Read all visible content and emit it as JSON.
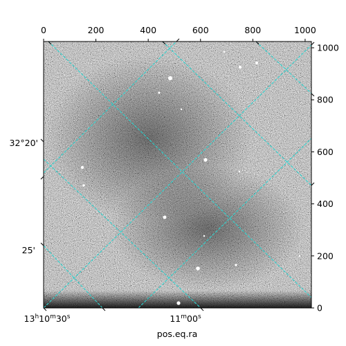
{
  "figure": {
    "axis_label_bottom": "pos.eq.ra",
    "pixel_axis_top": {
      "ticks": [
        "0",
        "200",
        "400",
        "600",
        "800",
        "1000"
      ],
      "values": [
        0,
        200,
        400,
        600,
        800,
        1000
      ],
      "range": [
        0,
        1024
      ]
    },
    "pixel_axis_right": {
      "ticks": [
        "0",
        "200",
        "400",
        "600",
        "800",
        "1000"
      ],
      "values": [
        0,
        200,
        400,
        600,
        800,
        1000
      ],
      "range": [
        0,
        1024
      ]
    },
    "ra_axis_bottom": {
      "ticks": [
        {
          "h": "13",
          "hs": "h",
          "m": "10",
          "ms": "m",
          "s": "30",
          "ss": "s"
        },
        {
          "h": "",
          "hs": "",
          "m": "11",
          "ms": "m",
          "s": "00",
          "ss": "s"
        }
      ]
    },
    "dec_axis_left": {
      "ticks": [
        "32°20'",
        "25'"
      ]
    },
    "grid_color": "#2bd3cf",
    "image_style": "grayscale noise astronomical image"
  }
}
